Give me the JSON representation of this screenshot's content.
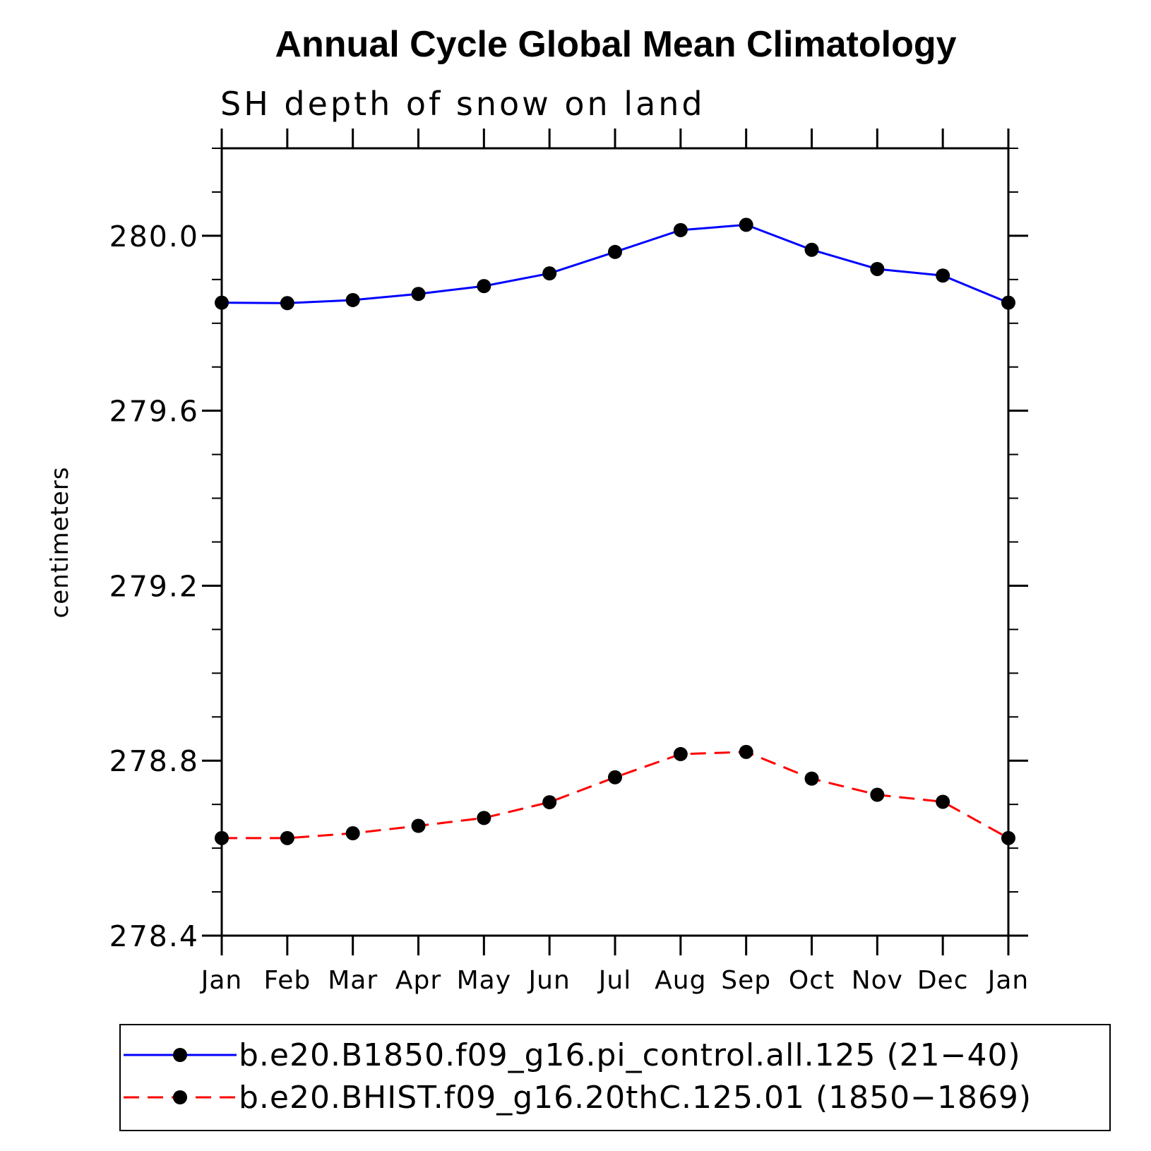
{
  "chart_data": {
    "type": "line",
    "title": "Annual Cycle Global Mean Climatology",
    "subtitle": "SH depth of snow on land",
    "xlabel": "",
    "ylabel": "centimeters",
    "categories": [
      "Jan",
      "Feb",
      "Mar",
      "Apr",
      "May",
      "Jun",
      "Jul",
      "Aug",
      "Sep",
      "Oct",
      "Nov",
      "Dec",
      "Jan"
    ],
    "ylim": [
      278.4,
      280.2
    ],
    "yticks": [
      278.4,
      278.8,
      279.2,
      279.6,
      280.0
    ],
    "ytick_labels": [
      "278.4",
      "278.8",
      "279.2",
      "279.6",
      "280.0"
    ],
    "y_minor_step": 0.1,
    "series": [
      {
        "name": "b.e20.B1850.f09_g16.pi_control.all.125 (21−40)",
        "color": "#0000ff",
        "dash": "solid",
        "marker_color": "#000000",
        "values": [
          279.847,
          279.846,
          279.853,
          279.867,
          279.885,
          279.914,
          279.963,
          280.013,
          280.025,
          279.968,
          279.924,
          279.909,
          279.847
        ]
      },
      {
        "name": "b.e20.BHIST.f09_g16.20thC.125.01 (1850−1869)",
        "color": "#ff0000",
        "dash": "dashed",
        "marker_color": "#000000",
        "values": [
          278.623,
          278.623,
          278.634,
          278.651,
          278.669,
          278.705,
          278.762,
          278.815,
          278.82,
          278.759,
          278.722,
          278.706,
          278.623
        ]
      }
    ],
    "legend_position": "bottom"
  }
}
